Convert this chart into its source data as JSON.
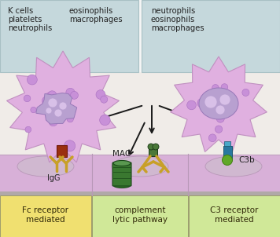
{
  "bg_color": "#f5f5f5",
  "top_bg": "#c5d8dc",
  "top_border": "#a8c0c4",
  "cell_fill": "#e0b0e0",
  "cell_outline": "#c090c0",
  "nucleus_fill_left": "#b8a0d0",
  "nucleus_outline": "#9878b8",
  "nucleus_fill_right": "#b8a0d0",
  "dot_fill": "#c090d0",
  "dot_outline": "#a070b8",
  "membrane_fill": "#d8b0d8",
  "membrane_top": "#c8a8c8",
  "membrane_base": "#b8a8b8",
  "membrane_cell_fill": "#d0c0d0",
  "bottom_yellow": "#f0e070",
  "bottom_green": "#d0e898",
  "bottom_border": "#909060",
  "red_fill": "#9a3010",
  "red_outline": "#701808",
  "gold_fill": "#c8a028",
  "gold_outline": "#a07818",
  "green_mac": "#3a7830",
  "green_mac_light": "#5a9850",
  "teal_fill": "#2878a0",
  "teal_outline": "#185870",
  "green_c3b": "#60a828",
  "green_c3b_outline": "#408010",
  "green_comp": "#4a7838",
  "gold_comp": "#c8a028",
  "arrow_color": "#1a1a1a",
  "text_color": "#222222",
  "label_igg": "IgG",
  "label_mac": "MAC",
  "label_c3b": "C3b",
  "label_fc": "Fc receptor\nmediated",
  "label_complement": "complement\nlytic pathway",
  "label_c3r": "C3 receptor\nmediated",
  "top_text_left": [
    "K cells",
    "platelets",
    "neutrophils"
  ],
  "top_text_mid": [
    "eosinophils",
    "macrophages"
  ],
  "top_text_right": [
    "neutrophils",
    "eosinophils",
    "macrophages"
  ]
}
